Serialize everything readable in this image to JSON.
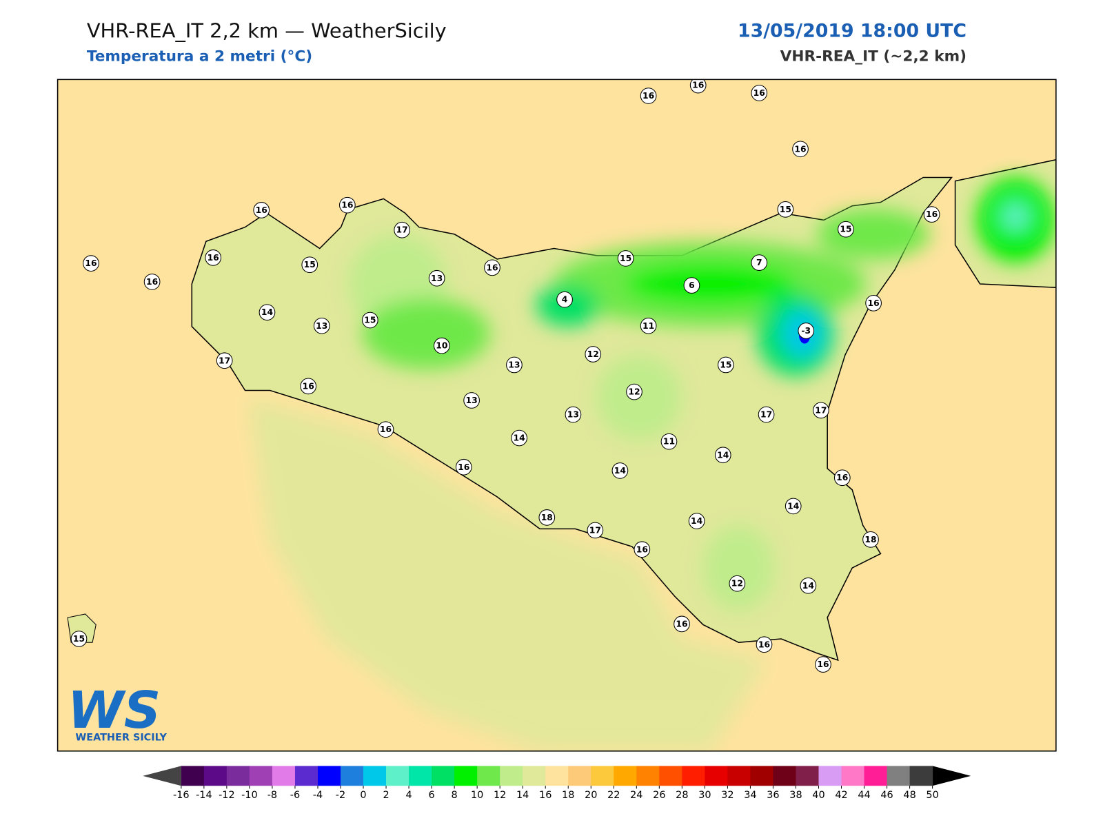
{
  "header": {
    "title": "VHR-REA_IT 2,2 km — WeatherSicily",
    "subtitle": "Temperatura a 2 metri (°C)",
    "datetime": "13/05/2019 18:00 UTC",
    "model": "VHR-REA_IT (~2,2 km)"
  },
  "logo": {
    "mark": "WS",
    "name": "WEATHER SICILY"
  },
  "stations": [
    16,
    16,
    16,
    16,
    16,
    16,
    16,
    16,
    16,
    17,
    15,
    13,
    16,
    14,
    13,
    15,
    17,
    16,
    10,
    13,
    13,
    4,
    12,
    15,
    6,
    11,
    7,
    15,
    15,
    16,
    16,
    -3,
    15,
    12,
    13,
    14,
    16,
    16,
    11,
    14,
    17,
    17,
    14,
    16,
    14,
    14,
    18,
    18,
    17,
    16,
    12,
    14,
    16,
    16,
    16,
    15
  ],
  "colorbar": {
    "ticks": [
      -16,
      -14,
      -12,
      -10,
      -8,
      -6,
      -4,
      -2,
      0,
      2,
      4,
      6,
      8,
      10,
      12,
      14,
      16,
      18,
      20,
      22,
      24,
      26,
      28,
      30,
      32,
      34,
      36,
      38,
      40,
      42,
      44,
      46,
      48,
      50
    ],
    "colors": [
      "#40004f",
      "#5c0a87",
      "#7a2c9c",
      "#a040b5",
      "#e07be8",
      "#5b2bd0",
      "#0000ff",
      "#1e7fdc",
      "#00c8e8",
      "#5ef0c8",
      "#00e6a8",
      "#00e064",
      "#00f000",
      "#6ee84a",
      "#c0ec8c",
      "#e0e89a",
      "#fee39f",
      "#fcca78",
      "#fcc83c",
      "#ffa800",
      "#ff8200",
      "#ff5000",
      "#ff1e00",
      "#e60000",
      "#c80000",
      "#a00000",
      "#6e0018",
      "#80204a",
      "#d89cf5",
      "#ff78c8",
      "#ff1e96",
      "#808080",
      "#3c3c3c"
    ],
    "under_color": "#444444",
    "over_color": "#000000"
  }
}
